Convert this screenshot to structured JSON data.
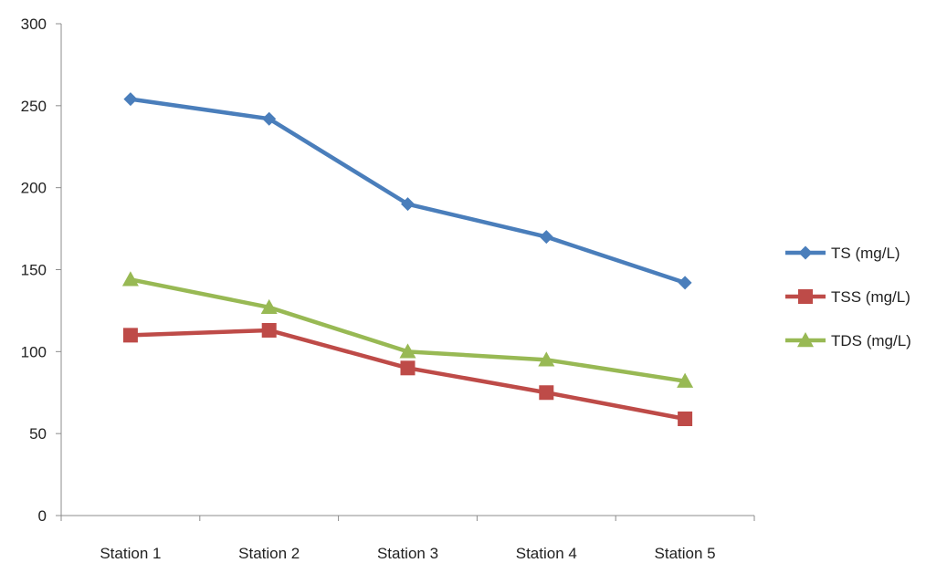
{
  "chart_data": {
    "type": "line",
    "title": "",
    "xlabel": "",
    "ylabel": "",
    "categories": [
      "Station 1",
      "Station 2",
      "Station 3",
      "Station 4",
      "Station 5"
    ],
    "ylim": [
      0,
      300
    ],
    "yticks": [
      "0",
      "50",
      "100",
      "150",
      "200",
      "250",
      "300"
    ],
    "grid": false,
    "legend_position": "right",
    "series": [
      {
        "name": "TS (mg/L)",
        "values": [
          254,
          242,
          190,
          170,
          142
        ],
        "color": "#4a7ebb",
        "marker": "diamond"
      },
      {
        "name": "TSS (mg/L)",
        "values": [
          110,
          113,
          90,
          75,
          59
        ],
        "color": "#be4b48",
        "marker": "square"
      },
      {
        "name": "TDS (mg/L)",
        "values": [
          144,
          127,
          100,
          95,
          82
        ],
        "color": "#98b954",
        "marker": "triangle"
      }
    ]
  }
}
